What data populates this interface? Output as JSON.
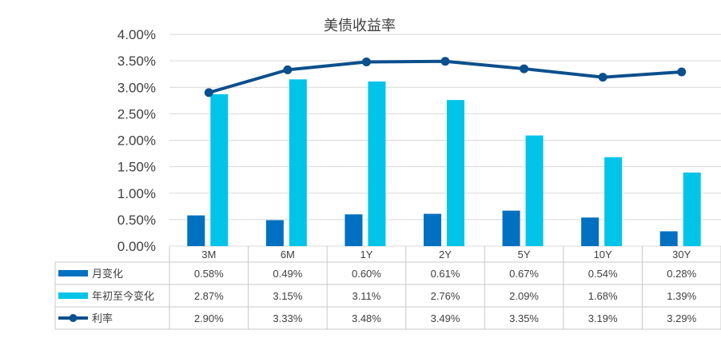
{
  "chart_data": {
    "type": "bar",
    "title": "美债收益率",
    "categories": [
      "3M",
      "6M",
      "1Y",
      "2Y",
      "5Y",
      "10Y",
      "30Y"
    ],
    "ylim": [
      0,
      4
    ],
    "yticks": [
      "0.00%",
      "0.50%",
      "1.00%",
      "1.50%",
      "2.00%",
      "2.50%",
      "3.00%",
      "3.50%",
      "4.00%"
    ],
    "grid": true,
    "legend": "data-table",
    "series": [
      {
        "name": "月变化",
        "type": "bar",
        "color": "#0070c0",
        "values": [
          0.58,
          0.49,
          0.6,
          0.61,
          0.67,
          0.54,
          0.28
        ],
        "labels": [
          "0.58%",
          "0.49%",
          "0.60%",
          "0.61%",
          "0.67%",
          "0.54%",
          "0.28%"
        ]
      },
      {
        "name": "年初至今变化",
        "type": "bar",
        "color": "#00c5e8",
        "values": [
          2.87,
          3.15,
          3.11,
          2.76,
          2.09,
          1.68,
          1.39
        ],
        "labels": [
          "2.87%",
          "3.15%",
          "3.11%",
          "2.76%",
          "2.09%",
          "1.68%",
          "1.39%"
        ]
      },
      {
        "name": "利率",
        "type": "line",
        "color": "#0b4f8c",
        "values": [
          2.9,
          3.33,
          3.48,
          3.49,
          3.35,
          3.19,
          3.29
        ],
        "labels": [
          "2.90%",
          "3.33%",
          "3.48%",
          "3.49%",
          "3.35%",
          "3.19%",
          "3.29%"
        ]
      }
    ]
  }
}
